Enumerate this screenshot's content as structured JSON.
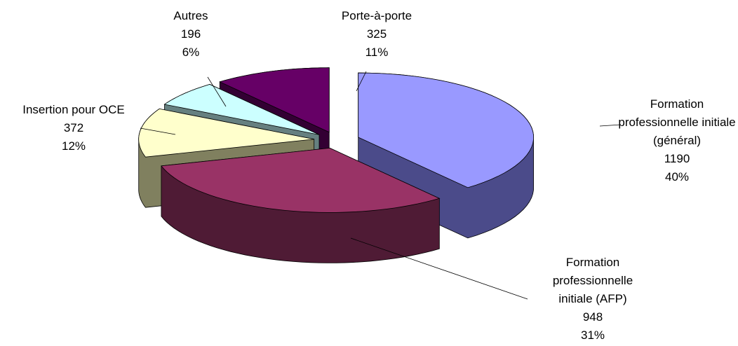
{
  "chart_data": {
    "type": "pie3d",
    "categories": [
      "Formation professionnelle initiale (général)",
      "Formation professionnelle initiale (AFP)",
      "Insertion pour OCE",
      "Autres",
      "Porte-à-porte"
    ],
    "values": [
      1190,
      948,
      372,
      196,
      325
    ],
    "percent_labels": [
      "40%",
      "31%",
      "12%",
      "6%",
      "11%"
    ],
    "colors": [
      "#9999ff",
      "#993366",
      "#ffffcc",
      "#ccffff",
      "#660066"
    ],
    "side_colors": [
      "#4b4b8a",
      "#4f1b35",
      "#80805f",
      "#668080",
      "#330033"
    ]
  }
}
